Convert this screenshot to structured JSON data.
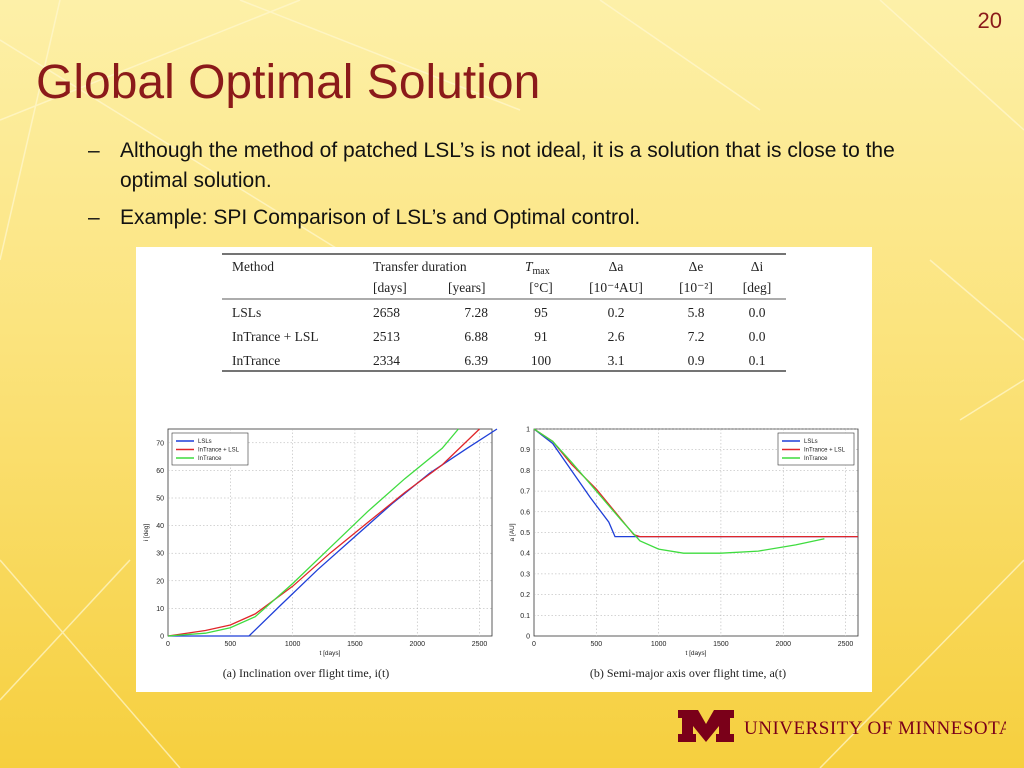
{
  "slide": {
    "number": "20",
    "title": "Global Optimal Solution",
    "bullets": [
      {
        "dash": "–",
        "text": "Although the method of patched LSL’s is not ideal, it is a solution that is close to the optimal solution."
      },
      {
        "dash": "–",
        "text": "Example: SPI Comparison of LSL’s and Optimal control."
      }
    ]
  },
  "table": {
    "header1": {
      "method": "Method",
      "transfer": "Transfer duration",
      "tmax": "T",
      "tmax_sub": "max",
      "da": "Δa",
      "de": "Δe",
      "di": "Δi"
    },
    "header2": {
      "days": "[days]",
      "years": "[years]",
      "tmax_unit": "[°C]",
      "da_unit": "[10⁻⁴AU]",
      "de_unit": "[10⁻²]",
      "di_unit": "[deg]"
    },
    "rows": [
      [
        "LSLs",
        "2658",
        "7.28",
        "95",
        "0.2",
        "5.8",
        "0.0"
      ],
      [
        "InTrance + LSL",
        "2513",
        "6.88",
        "91",
        "2.6",
        "7.2",
        "0.0"
      ],
      [
        "InTrance",
        "2334",
        "6.39",
        "100",
        "3.1",
        "0.9",
        "0.1"
      ]
    ]
  },
  "colors": {
    "title": "#8b1a1a",
    "lsl": "#1f3fd8",
    "intrance_lsl": "#e0262a",
    "intrance": "#3fdc3f"
  },
  "logo": {
    "text": "UNIVERSITY OF MINNESOTA",
    "mark": "M"
  },
  "chart_data": [
    {
      "type": "line",
      "caption": "(a)  Inclination over flight time, i(t)",
      "xlabel": "t [days]",
      "ylabel": "i [deg]",
      "xlim": [
        0,
        2600
      ],
      "ylim": [
        0,
        75
      ],
      "xticks": [
        0,
        500,
        1000,
        1500,
        2000,
        2500
      ],
      "yticks": [
        0,
        10,
        20,
        30,
        40,
        50,
        60,
        70
      ],
      "grid": true,
      "legend_position": "top-left",
      "series": [
        {
          "name": "LSLs",
          "color": "#1f3fd8",
          "x": [
            0,
            650,
            900,
            1200,
            1500,
            1800,
            2100,
            2400,
            2640
          ],
          "y": [
            0,
            0,
            11,
            24,
            36,
            48,
            59,
            68,
            75
          ]
        },
        {
          "name": "InTrance + LSL",
          "color": "#e0262a",
          "x": [
            0,
            300,
            500,
            700,
            1000,
            1300,
            1600,
            1900,
            2200,
            2500
          ],
          "y": [
            0,
            2,
            4,
            8,
            18,
            30,
            41,
            52,
            62,
            75
          ]
        },
        {
          "name": "InTrance",
          "color": "#3fdc3f",
          "x": [
            0,
            300,
            500,
            700,
            1000,
            1300,
            1600,
            1900,
            2200,
            2330
          ],
          "y": [
            0,
            1,
            3,
            7,
            19,
            32,
            45,
            57,
            68,
            75
          ]
        }
      ]
    },
    {
      "type": "line",
      "caption": "(b)  Semi-major axis over flight time, a(t)",
      "xlabel": "t [days]",
      "ylabel": "a [AU]",
      "xlim": [
        0,
        2600
      ],
      "ylim": [
        0,
        1
      ],
      "xticks": [
        0,
        500,
        1000,
        1500,
        2000,
        2500
      ],
      "yticks": [
        0,
        0.1,
        0.2,
        0.3,
        0.4,
        0.5,
        0.6,
        0.7,
        0.8,
        0.9,
        1
      ],
      "grid": true,
      "legend_position": "top-right",
      "series": [
        {
          "name": "LSLs",
          "color": "#1f3fd8",
          "x": [
            0,
            150,
            300,
            450,
            600,
            650,
            800,
            2600
          ],
          "y": [
            1,
            0.93,
            0.8,
            0.67,
            0.55,
            0.48,
            0.48,
            0.48
          ]
        },
        {
          "name": "InTrance + LSL",
          "color": "#e0262a",
          "x": [
            0,
            150,
            300,
            500,
            650,
            800,
            850,
            2600
          ],
          "y": [
            1,
            0.94,
            0.83,
            0.71,
            0.6,
            0.49,
            0.48,
            0.48
          ]
        },
        {
          "name": "InTrance",
          "color": "#3fdc3f",
          "x": [
            0,
            150,
            300,
            500,
            700,
            850,
            1000,
            1200,
            1500,
            1800,
            2100,
            2330
          ],
          "y": [
            1,
            0.94,
            0.84,
            0.7,
            0.56,
            0.46,
            0.42,
            0.4,
            0.4,
            0.41,
            0.44,
            0.47
          ]
        }
      ]
    }
  ]
}
